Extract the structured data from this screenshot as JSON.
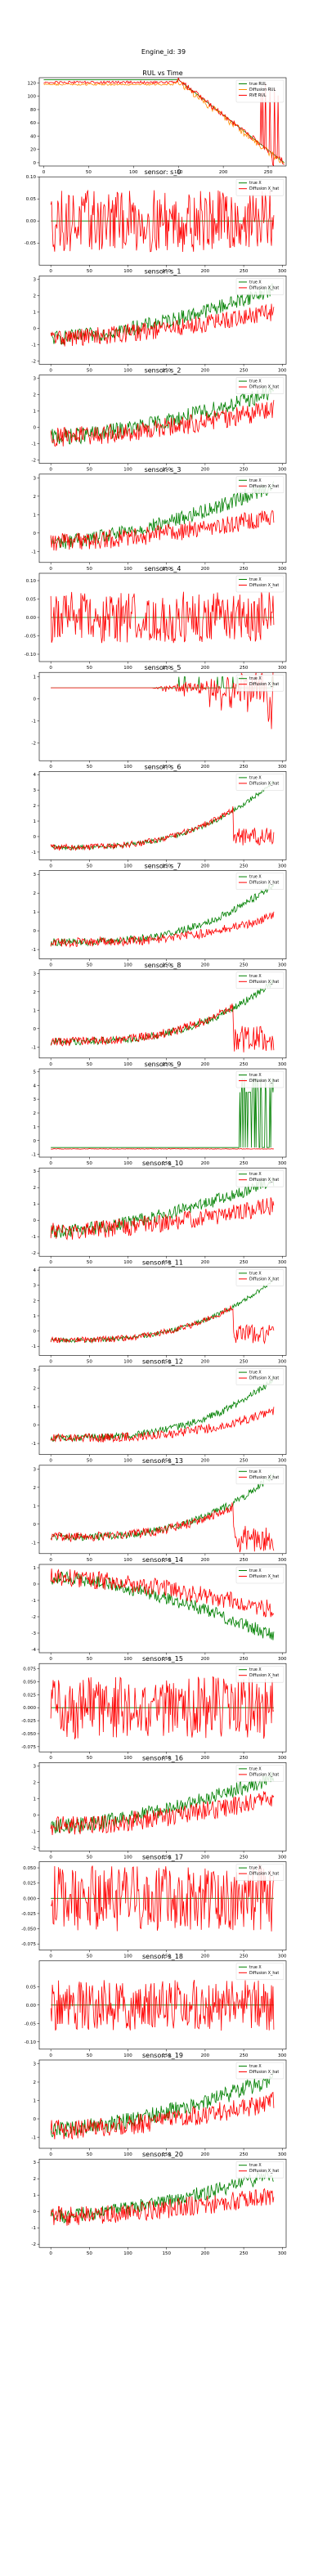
{
  "figure_title": "Engine_id: 39",
  "chart_data": [
    {
      "id": "rul",
      "type": "line",
      "title": "RUL vs Time",
      "xlim": [
        -5,
        270
      ],
      "ylim": [
        -5,
        128
      ],
      "xticks": [
        0,
        50,
        100,
        150,
        200,
        250
      ],
      "yticks": [
        0,
        20,
        40,
        60,
        80,
        100,
        120
      ],
      "legend_position": "top-right",
      "series": [
        {
          "name": "true RUL",
          "color": "#008000",
          "kind": "rul_true"
        },
        {
          "name": "Diffusion RUL",
          "color": "#ff8c00",
          "kind": "rul_diff"
        },
        {
          "name": "RVE RUL",
          "color": "#ff0000",
          "kind": "rul_rve"
        }
      ]
    },
    {
      "id": "s0",
      "type": "line",
      "title": "sensor: s_0",
      "xlim": [
        -15,
        305
      ],
      "ylim": [
        -0.1,
        0.1
      ],
      "yticks": [
        -0.05,
        0.0,
        0.05,
        0.1
      ],
      "xticks": [
        0,
        50,
        100,
        150,
        200,
        250,
        300
      ],
      "series": [
        {
          "name": "true X",
          "color": "#008000",
          "kind": "noise",
          "base": 0,
          "amp": 0.0
        },
        {
          "name": "Diffusion X_hat",
          "color": "#ff0000",
          "kind": "noise",
          "base": 0,
          "amp": 0.07
        }
      ]
    },
    {
      "id": "s1",
      "type": "line",
      "title": "sensor: s_1",
      "xlim": [
        -15,
        305
      ],
      "ylim": [
        -2.2,
        3.2
      ],
      "yticks": [
        -2,
        -1,
        0,
        1,
        2,
        3
      ],
      "xticks": [
        0,
        50,
        100,
        150,
        200,
        250,
        300
      ],
      "series": [
        {
          "name": "true X",
          "color": "#008000",
          "kind": "trend",
          "start": -0.6,
          "end": 2.4,
          "amp": 0.45
        },
        {
          "name": "Diffusion X_hat",
          "color": "#ff0000",
          "kind": "trend",
          "start": -0.6,
          "end": 1.0,
          "amp": 0.55
        }
      ]
    },
    {
      "id": "s2",
      "type": "line",
      "title": "sensor: s_2",
      "xlim": [
        -15,
        305
      ],
      "ylim": [
        -2.2,
        3.2
      ],
      "yticks": [
        -2,
        -1,
        0,
        1,
        2,
        3
      ],
      "xticks": [
        0,
        50,
        100,
        150,
        200,
        250,
        300
      ],
      "series": [
        {
          "name": "true X",
          "color": "#008000",
          "kind": "trend",
          "start": -0.6,
          "end": 2.2,
          "amp": 0.5
        },
        {
          "name": "Diffusion X_hat",
          "color": "#ff0000",
          "kind": "trend",
          "start": -0.6,
          "end": 1.1,
          "amp": 0.6
        }
      ]
    },
    {
      "id": "s3",
      "type": "line",
      "title": "sensor: s_3",
      "xlim": [
        -15,
        305
      ],
      "ylim": [
        -1.6,
        3.2
      ],
      "yticks": [
        -1,
        0,
        1,
        2,
        3
      ],
      "xticks": [
        0,
        50,
        100,
        150,
        200,
        250,
        300
      ],
      "series": [
        {
          "name": "true X",
          "color": "#008000",
          "kind": "trend",
          "start": -0.5,
          "end": 2.6,
          "amp": 0.4
        },
        {
          "name": "Diffusion X_hat",
          "color": "#ff0000",
          "kind": "trend",
          "start": -0.5,
          "end": 0.9,
          "amp": 0.5
        }
      ]
    },
    {
      "id": "s4",
      "type": "line",
      "title": "sensor: s_4",
      "xlim": [
        -15,
        305
      ],
      "ylim": [
        -0.12,
        0.12
      ],
      "yticks": [
        -0.1,
        -0.05,
        0.0,
        0.05,
        0.1
      ],
      "xticks": [
        0,
        50,
        100,
        150,
        200,
        250,
        300
      ],
      "series": [
        {
          "name": "true X",
          "color": "#008000",
          "kind": "noise",
          "base": 0,
          "amp": 0.0
        },
        {
          "name": "Diffusion X_hat",
          "color": "#ff0000",
          "kind": "noise",
          "base": 0,
          "amp": 0.07
        }
      ]
    },
    {
      "id": "s5",
      "type": "line",
      "title": "sensor: s_5",
      "xlim": [
        -15,
        305
      ],
      "ylim": [
        -2.8,
        1.2
      ],
      "yticks": [
        -2,
        -1,
        0,
        1
      ],
      "xticks": [
        0,
        50,
        100,
        150,
        200,
        250,
        300
      ],
      "series": [
        {
          "name": "true X",
          "color": "#008000",
          "kind": "step_up",
          "base": 0.5,
          "high": 1.0
        },
        {
          "name": "Diffusion X_hat",
          "color": "#ff0000",
          "kind": "spiky_down",
          "base": 0.5,
          "amp": 0.9
        }
      ]
    },
    {
      "id": "s6",
      "type": "line",
      "title": "sensor: s_6",
      "xlim": [
        -15,
        305
      ],
      "ylim": [
        -1.5,
        4.2
      ],
      "yticks": [
        -1,
        0,
        1,
        2,
        3,
        4
      ],
      "xticks": [
        0,
        50,
        100,
        150,
        200,
        250,
        300
      ],
      "series": [
        {
          "name": "true X",
          "color": "#008000",
          "kind": "exp",
          "start": -0.7,
          "end": 3.6,
          "amp": 0.15
        },
        {
          "name": "Diffusion X_hat",
          "color": "#ff0000",
          "kind": "exp_drop",
          "start": -0.7,
          "peak": 1.8,
          "amp": 0.2
        }
      ]
    },
    {
      "id": "s7",
      "type": "line",
      "title": "sensor: s_7",
      "xlim": [
        -15,
        305
      ],
      "ylim": [
        -1.5,
        3.2
      ],
      "yticks": [
        -1,
        0,
        1,
        2,
        3
      ],
      "xticks": [
        0,
        50,
        100,
        150,
        200,
        250,
        300
      ],
      "series": [
        {
          "name": "true X",
          "color": "#008000",
          "kind": "exp",
          "start": -0.6,
          "end": 2.5,
          "amp": 0.2
        },
        {
          "name": "Diffusion X_hat",
          "color": "#ff0000",
          "kind": "exp",
          "start": -0.6,
          "end": 0.8,
          "amp": 0.25
        }
      ]
    },
    {
      "id": "s8",
      "type": "line",
      "title": "sensor: s_8",
      "xlim": [
        -15,
        305
      ],
      "ylim": [
        -1.6,
        3.2
      ],
      "yticks": [
        -1,
        0,
        1,
        2,
        3
      ],
      "xticks": [
        0,
        50,
        100,
        150,
        200,
        250,
        300
      ],
      "series": [
        {
          "name": "true X",
          "color": "#008000",
          "kind": "exp",
          "start": -0.7,
          "end": 2.6,
          "amp": 0.2
        },
        {
          "name": "Diffusion X_hat",
          "color": "#ff0000",
          "kind": "exp_drop",
          "start": -0.7,
          "peak": 1.2,
          "amp": 0.25
        }
      ]
    },
    {
      "id": "s9",
      "type": "line",
      "title": "sensor: s_9",
      "xlim": [
        -15,
        305
      ],
      "ylim": [
        -1.2,
        5.2
      ],
      "yticks": [
        -1,
        0,
        1,
        2,
        3,
        4,
        5
      ],
      "xticks": [
        0,
        50,
        100,
        150,
        200,
        250,
        300
      ],
      "series": [
        {
          "name": "true X",
          "color": "#008000",
          "kind": "step_late",
          "base": -0.5,
          "high": 3.5
        },
        {
          "name": "Diffusion X_hat",
          "color": "#ff0000",
          "kind": "flat",
          "base": -0.6
        }
      ]
    },
    {
      "id": "s10",
      "type": "line",
      "title": "sensor: s_10",
      "xlim": [
        -15,
        305
      ],
      "ylim": [
        -2.2,
        3.2
      ],
      "yticks": [
        -2,
        -1,
        0,
        1,
        2,
        3
      ],
      "xticks": [
        0,
        50,
        100,
        150,
        200,
        250,
        300
      ],
      "series": [
        {
          "name": "true X",
          "color": "#008000",
          "kind": "trend",
          "start": -0.7,
          "end": 2.4,
          "amp": 0.4
        },
        {
          "name": "Diffusion X_hat",
          "color": "#ff0000",
          "kind": "trend",
          "start": -0.7,
          "end": 0.9,
          "amp": 0.55
        }
      ]
    },
    {
      "id": "s11",
      "type": "line",
      "title": "sensor: s_11",
      "xlim": [
        -15,
        305
      ],
      "ylim": [
        -1.6,
        4.2
      ],
      "yticks": [
        -1,
        0,
        1,
        2,
        3,
        4
      ],
      "xticks": [
        0,
        50,
        100,
        150,
        200,
        250,
        300
      ],
      "series": [
        {
          "name": "true X",
          "color": "#008000",
          "kind": "exp",
          "start": -0.6,
          "end": 3.4,
          "amp": 0.15
        },
        {
          "name": "Diffusion X_hat",
          "color": "#ff0000",
          "kind": "exp_drop",
          "start": -0.6,
          "peak": 1.6,
          "amp": 0.2
        }
      ]
    },
    {
      "id": "s12",
      "type": "line",
      "title": "sensor: s_12",
      "xlim": [
        -15,
        305
      ],
      "ylim": [
        -1.6,
        3.2
      ],
      "yticks": [
        -1,
        0,
        1,
        2,
        3
      ],
      "xticks": [
        0,
        50,
        100,
        150,
        200,
        250,
        300
      ],
      "series": [
        {
          "name": "true X",
          "color": "#008000",
          "kind": "exp",
          "start": -0.7,
          "end": 2.5,
          "amp": 0.2
        },
        {
          "name": "Diffusion X_hat",
          "color": "#ff0000",
          "kind": "exp",
          "start": -0.7,
          "end": 0.8,
          "amp": 0.25
        }
      ]
    },
    {
      "id": "s13",
      "type": "line",
      "title": "sensor: s_13",
      "xlim": [
        -15,
        305
      ],
      "ylim": [
        -1.6,
        3.2
      ],
      "yticks": [
        -1,
        0,
        1,
        2,
        3
      ],
      "xticks": [
        0,
        50,
        100,
        150,
        200,
        250,
        300
      ],
      "series": [
        {
          "name": "true X",
          "color": "#008000",
          "kind": "exp",
          "start": -0.7,
          "end": 2.7,
          "amp": 0.2
        },
        {
          "name": "Diffusion X_hat",
          "color": "#ff0000",
          "kind": "exp_drop",
          "start": -0.7,
          "peak": 1.0,
          "amp": 0.25
        }
      ]
    },
    {
      "id": "s14",
      "type": "line",
      "title": "sensor: s_14",
      "xlim": [
        -15,
        305
      ],
      "ylim": [
        -4.2,
        1.2
      ],
      "yticks": [
        -4,
        -3,
        -2,
        -1,
        0,
        1
      ],
      "xticks": [
        0,
        50,
        100,
        150,
        200,
        250,
        300
      ],
      "series": [
        {
          "name": "true X",
          "color": "#008000",
          "kind": "trend",
          "start": 0.4,
          "end": -3.2,
          "amp": 0.4
        },
        {
          "name": "Diffusion X_hat",
          "color": "#ff0000",
          "kind": "trend",
          "start": 0.4,
          "end": -1.6,
          "amp": 0.55
        }
      ]
    },
    {
      "id": "s15",
      "type": "line",
      "title": "sensor: s_15",
      "xlim": [
        -15,
        305
      ],
      "ylim": [
        -0.085,
        0.085
      ],
      "yticks": [
        -0.075,
        -0.05,
        -0.025,
        0.0,
        0.025,
        0.05,
        0.075
      ],
      "xticks": [
        0,
        50,
        100,
        150,
        200,
        250,
        300
      ],
      "series": [
        {
          "name": "true X",
          "color": "#008000",
          "kind": "noise",
          "base": 0,
          "amp": 0.0
        },
        {
          "name": "Diffusion X_hat",
          "color": "#ff0000",
          "kind": "noise",
          "base": 0,
          "amp": 0.06
        }
      ]
    },
    {
      "id": "s16",
      "type": "line",
      "title": "sensor: s_16",
      "xlim": [
        -15,
        305
      ],
      "ylim": [
        -2.2,
        3.2
      ],
      "yticks": [
        -2,
        -1,
        0,
        1,
        2,
        3
      ],
      "xticks": [
        0,
        50,
        100,
        150,
        200,
        250,
        300
      ],
      "series": [
        {
          "name": "true X",
          "color": "#008000",
          "kind": "trend",
          "start": -0.7,
          "end": 2.3,
          "amp": 0.45
        },
        {
          "name": "Diffusion X_hat",
          "color": "#ff0000",
          "kind": "trend",
          "start": -0.7,
          "end": 1.0,
          "amp": 0.6
        }
      ]
    },
    {
      "id": "s17",
      "type": "line",
      "title": "sensor: s_17",
      "xlim": [
        -15,
        305
      ],
      "ylim": [
        -0.085,
        0.06
      ],
      "yticks": [
        -0.075,
        -0.05,
        -0.025,
        0.0,
        0.025,
        0.05
      ],
      "xticks": [
        0,
        50,
        100,
        150,
        200,
        250,
        300
      ],
      "series": [
        {
          "name": "true X",
          "color": "#008000",
          "kind": "noise",
          "base": 0,
          "amp": 0.0
        },
        {
          "name": "Diffusion X_hat",
          "color": "#ff0000",
          "kind": "noise",
          "base": 0,
          "amp": 0.055
        }
      ]
    },
    {
      "id": "s18",
      "type": "line",
      "title": "sensor: s_18",
      "xlim": [
        -15,
        305
      ],
      "ylim": [
        -0.12,
        0.12
      ],
      "yticks": [
        -0.1,
        -0.05,
        0.0,
        0.05
      ],
      "xticks": [
        0,
        50,
        100,
        150,
        200,
        250,
        300
      ],
      "series": [
        {
          "name": "true X",
          "color": "#008000",
          "kind": "noise",
          "base": 0,
          "amp": 0.0
        },
        {
          "name": "Diffusion X_hat",
          "color": "#ff0000",
          "kind": "noise",
          "base": 0,
          "amp": 0.07
        }
      ]
    },
    {
      "id": "s19",
      "type": "line",
      "title": "sensor: s_19",
      "xlim": [
        -15,
        305
      ],
      "ylim": [
        -1.6,
        3.2
      ],
      "yticks": [
        -1,
        0,
        1,
        2,
        3
      ],
      "xticks": [
        0,
        50,
        100,
        150,
        200,
        250,
        300
      ],
      "series": [
        {
          "name": "true X",
          "color": "#008000",
          "kind": "trend",
          "start": -0.6,
          "end": 2.2,
          "amp": 0.45
        },
        {
          "name": "Diffusion X_hat",
          "color": "#ff0000",
          "kind": "trend",
          "start": -0.6,
          "end": 0.9,
          "amp": 0.55
        }
      ]
    },
    {
      "id": "s20",
      "type": "line",
      "title": "sensor: s_20",
      "xlim": [
        -15,
        305
      ],
      "ylim": [
        -2.2,
        3.2
      ],
      "yticks": [
        -2,
        -1,
        0,
        1,
        2,
        3
      ],
      "xticks": [
        0,
        50,
        100,
        150,
        200,
        250,
        300
      ],
      "series": [
        {
          "name": "true X",
          "color": "#008000",
          "kind": "trend",
          "start": -0.3,
          "end": 2.3,
          "amp": 0.45
        },
        {
          "name": "Diffusion X_hat",
          "color": "#ff0000",
          "kind": "trend",
          "start": -0.3,
          "end": 1.0,
          "amp": 0.6
        }
      ]
    }
  ]
}
